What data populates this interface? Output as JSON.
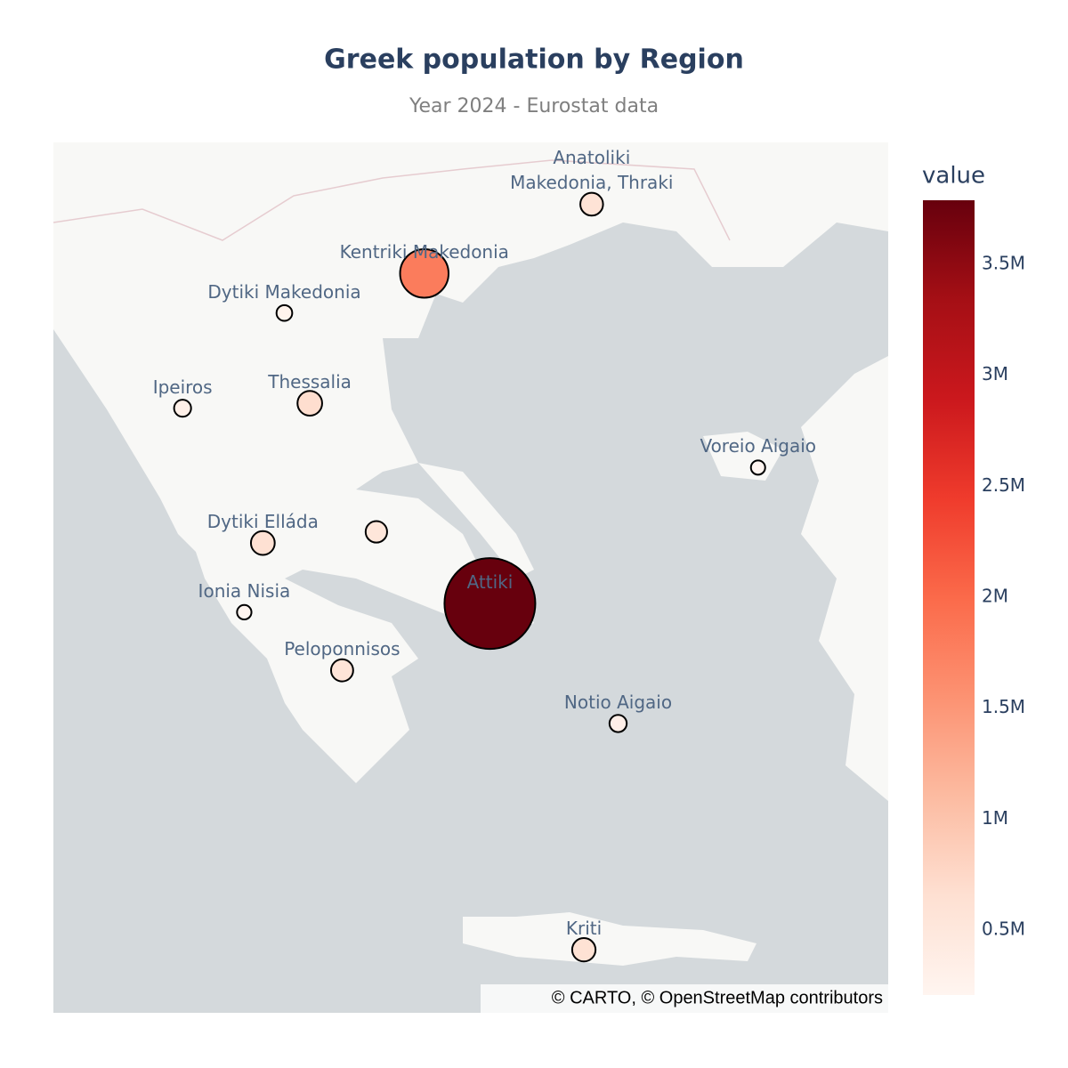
{
  "chart_data": {
    "type": "scattermap",
    "title": "Greek population by Region",
    "subtitle": "Year 2024 - Eurostat data",
    "labels": [
      "Anatoliki\nMakedonia, Thraki",
      "Kentriki Makedonia",
      "Dytiki Makedonia",
      "Ipeiros",
      "Thessalia",
      "Voreio Aigaio",
      null,
      "Dytiki Elláda",
      "Attiki",
      "Ionia Nisia",
      "Peloponnisos",
      "Notio Aigaio",
      "Kriti"
    ],
    "lon": [
      24.77,
      23.06,
      21.63,
      20.59,
      21.89,
      26.47,
      22.57,
      21.41,
      23.73,
      21.22,
      22.22,
      25.04,
      24.69
    ],
    "lat": [
      41.21,
      40.65,
      40.33,
      39.56,
      39.6,
      39.08,
      38.56,
      38.47,
      37.98,
      37.91,
      37.44,
      37.01,
      35.18
    ],
    "values": [
      590000,
      1800000,
      260000,
      320000,
      680000,
      190000,
      530000,
      640000,
      3790000,
      200000,
      560000,
      330000,
      620000
    ],
    "lonlim": [
      19.27,
      27.8
    ],
    "latlim": [
      34.67,
      41.71
    ],
    "colorscale": [
      "#fff5f0",
      "#fee0d2",
      "#fcbba1",
      "#fc9272",
      "#fb6a4a",
      "#ef3b2c",
      "#cb181d",
      "#a50f15",
      "#67000d"
    ],
    "clim": [
      207000,
      3789000
    ],
    "colorbar_title": "value",
    "colorbar_ticks": [
      {
        "value": 500000,
        "label": "0.5M"
      },
      {
        "value": 1000000,
        "label": "1M"
      },
      {
        "value": 1500000,
        "label": "1.5M"
      },
      {
        "value": 2000000,
        "label": "2M"
      },
      {
        "value": 2500000,
        "label": "2.5M"
      },
      {
        "value": 3000000,
        "label": "3M"
      },
      {
        "value": 3500000,
        "label": "3.5M"
      }
    ],
    "attribution": "© CARTO, © OpenStreetMap contributors"
  }
}
